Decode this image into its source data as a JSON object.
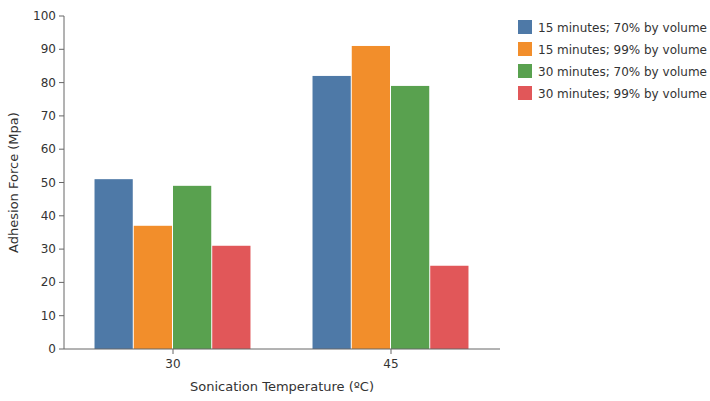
{
  "chart_data": {
    "type": "bar",
    "xlabel": "Sonication Temperature (ºC)",
    "ylabel": "Adhesion Force (Mpa)",
    "categories": [
      "30",
      "45"
    ],
    "series": [
      {
        "name": "15 minutes; 70% by volume",
        "values": [
          51,
          82
        ]
      },
      {
        "name": "15 minutes; 99% by volume",
        "values": [
          37,
          91
        ]
      },
      {
        "name": "30 minutes; 70% by volume",
        "values": [
          49,
          79
        ]
      },
      {
        "name": "30 minutes; 99% by volume",
        "values": [
          31,
          25
        ]
      }
    ],
    "ylim": [
      0,
      100
    ],
    "yticks": [
      0,
      10,
      20,
      30,
      40,
      50,
      60,
      70,
      80,
      90,
      100
    ],
    "grid": false,
    "legend": "upper right"
  }
}
